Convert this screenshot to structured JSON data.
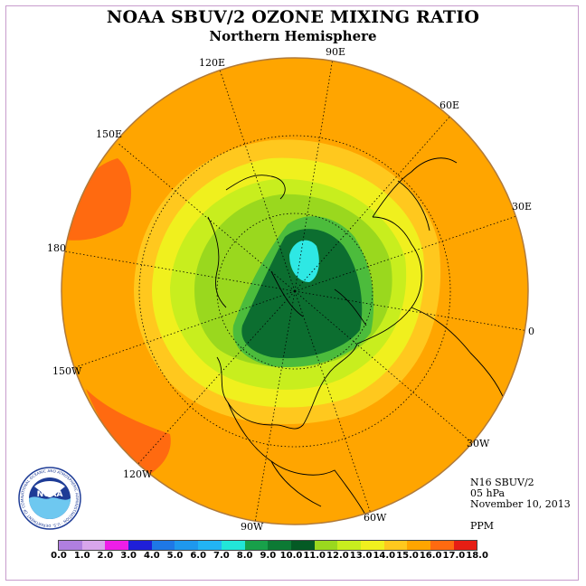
{
  "header": {
    "title": "NOAA SBUV/2 OZONE MIXING RATIO",
    "subtitle": "Northern Hemisphere"
  },
  "longitude_labels": {
    "e90": "90E",
    "e120": "120E",
    "e60": "60E",
    "e150": "150E",
    "e30": "30E",
    "d180": "180",
    "d0": "0",
    "w150": "150W",
    "w30": "30W",
    "w120": "120W",
    "w60": "60W",
    "w90": "90W"
  },
  "info": {
    "satellite": "N16 SBUV/2",
    "level": "05 hPa",
    "date": "November 10, 2013",
    "unit": "PPM"
  },
  "logo": {
    "text": "NOAA",
    "ring_text": "NATIONAL OCEANIC AND ATMOSPHERIC ADMINISTRATION · U.S. DEPARTMENT OF COMMERCE"
  },
  "colorbar": {
    "ticks": [
      "0.0",
      "1.0",
      "2.0",
      "3.0",
      "4.0",
      "5.0",
      "6.0",
      "7.0",
      "8.0",
      "9.0",
      "10.0",
      "11.0",
      "12.0",
      "13.0",
      "14.0",
      "15.0",
      "16.0",
      "17.0",
      "18.0"
    ],
    "colors": [
      "#b07fe0",
      "#d8a6ec",
      "#ee1ee8",
      "#1f1fd8",
      "#1e78e6",
      "#1e98ee",
      "#22b4f4",
      "#22e6d8",
      "#18a04a",
      "#0c7a34",
      "#045a24",
      "#9ad81e",
      "#c8ee1e",
      "#f0f01e",
      "#ffc81e",
      "#ffa500",
      "#ff6a10",
      "#e61e14",
      "#a0603a"
    ]
  },
  "map_colors": {
    "ocean_outer": "#ffa500",
    "band_gold": "#ffc81e",
    "band_yellow": "#f0f01e",
    "band_lightgreen": "#c8ee1e",
    "band_green": "#9ad81e",
    "band_midgreen": "#4cbc3c",
    "core_dark": "#0c6e30",
    "core_cyan": "#2ee8e4",
    "max_orange": "#ff6a10"
  }
}
